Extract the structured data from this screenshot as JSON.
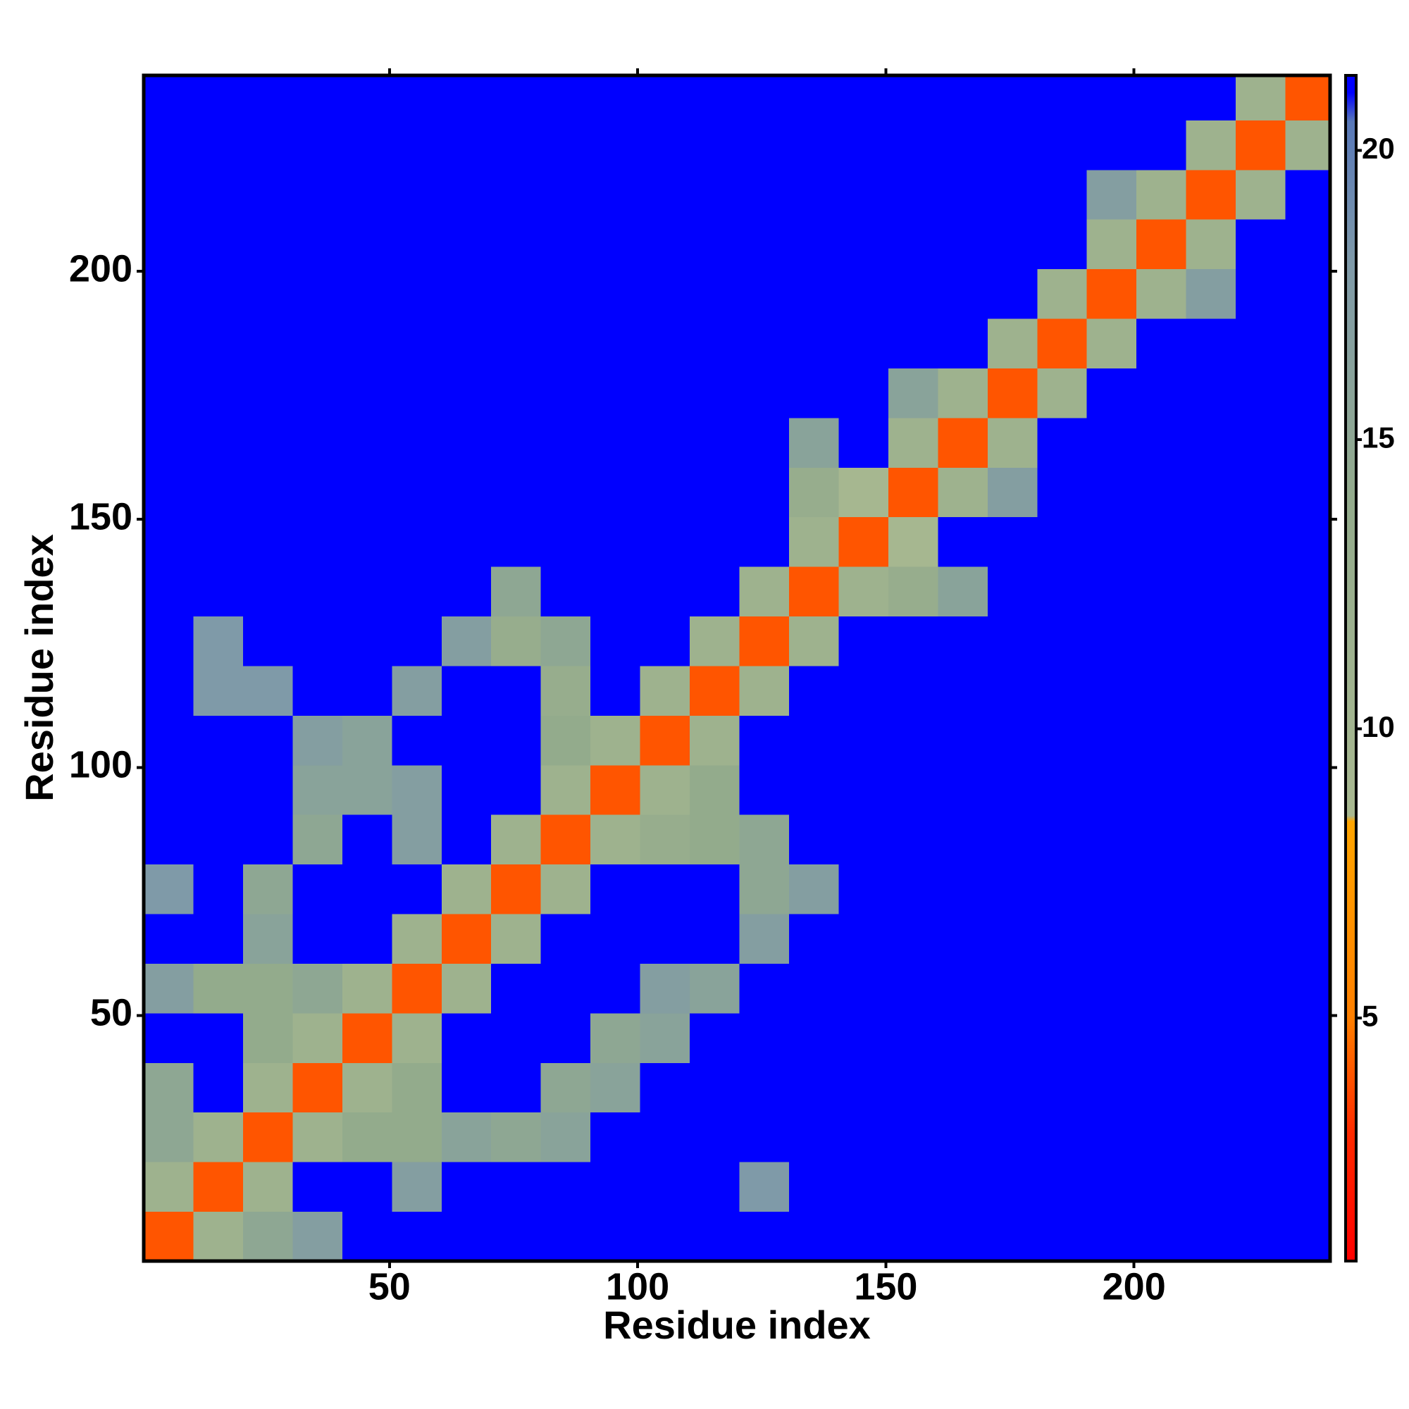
{
  "chart_data": {
    "type": "heatmap",
    "xlabel": "Residue index",
    "ylabel": "Residue index",
    "xlim": [
      0.5,
      239.5
    ],
    "ylim": [
      0.5,
      239.5
    ],
    "xticks": [
      50,
      100,
      150,
      200
    ],
    "yticks": [
      50,
      100,
      150,
      200
    ],
    "xbins": [
      0.5,
      10.5,
      20.5,
      30.5,
      40.5,
      50.5,
      60.5,
      70.5,
      80.5,
      90.5,
      100.5,
      110.5,
      120.5,
      130.5,
      140.5,
      150.5,
      160.5,
      170.5,
      180.5,
      190.5,
      200.5,
      210.5,
      220.5,
      230.5,
      239.5
    ],
    "ybins": [
      0.5,
      10.5,
      20.5,
      30.5,
      40.5,
      50.5,
      60.5,
      70.5,
      80.5,
      90.5,
      100.5,
      110.5,
      120.5,
      130.5,
      140.5,
      150.5,
      160.5,
      170.5,
      180.5,
      190.5,
      200.5,
      210.5,
      220.5,
      230.5,
      239.5
    ],
    "z": [
      [
        4,
        11,
        15,
        17,
        21,
        21,
        21,
        21,
        21,
        21,
        21,
        21,
        21,
        21,
        21,
        21,
        21,
        21,
        21,
        21,
        21,
        21,
        21,
        21
      ],
      [
        11,
        4,
        11,
        21,
        21,
        17,
        21,
        21,
        21,
        21,
        21,
        21,
        18,
        21,
        21,
        21,
        21,
        21,
        21,
        21,
        21,
        21,
        21,
        21
      ],
      [
        15,
        11,
        4,
        11,
        14,
        14,
        16,
        15,
        16,
        21,
        21,
        21,
        21,
        21,
        21,
        21,
        21,
        21,
        21,
        21,
        21,
        21,
        21,
        21
      ],
      [
        15,
        21,
        11,
        4,
        11,
        14,
        21,
        21,
        15,
        16,
        21,
        21,
        21,
        21,
        21,
        21,
        21,
        21,
        21,
        21,
        21,
        21,
        21,
        21
      ],
      [
        21,
        21,
        14,
        11,
        4,
        11,
        21,
        21,
        21,
        15,
        16,
        21,
        21,
        21,
        21,
        21,
        21,
        21,
        21,
        21,
        21,
        21,
        21,
        21
      ],
      [
        17,
        14,
        14,
        15,
        11,
        4,
        11,
        21,
        21,
        21,
        17,
        16,
        21,
        21,
        21,
        21,
        21,
        21,
        21,
        21,
        21,
        21,
        21,
        21
      ],
      [
        21,
        21,
        16,
        21,
        21,
        11,
        4,
        11,
        21,
        21,
        21,
        21,
        17,
        21,
        21,
        21,
        21,
        21,
        21,
        21,
        21,
        21,
        21,
        21
      ],
      [
        18,
        21,
        15,
        21,
        21,
        21,
        11,
        4,
        11,
        21,
        21,
        21,
        15,
        17,
        21,
        21,
        21,
        21,
        21,
        21,
        21,
        21,
        21,
        21
      ],
      [
        21,
        21,
        21,
        15,
        21,
        17,
        21,
        11,
        4,
        11,
        13,
        14,
        15,
        21,
        21,
        21,
        21,
        21,
        21,
        21,
        21,
        21,
        21,
        21
      ],
      [
        21,
        21,
        21,
        16,
        16,
        17,
        21,
        21,
        11,
        4,
        11,
        14,
        21,
        21,
        21,
        21,
        21,
        21,
        21,
        21,
        21,
        21,
        21,
        21
      ],
      [
        21,
        21,
        21,
        17,
        16,
        21,
        21,
        21,
        14,
        11,
        4,
        11,
        21,
        21,
        21,
        21,
        21,
        21,
        21,
        21,
        21,
        21,
        21,
        21
      ],
      [
        21,
        18,
        18,
        21,
        21,
        17,
        21,
        21,
        13,
        21,
        11,
        4,
        11,
        21,
        21,
        21,
        21,
        21,
        21,
        21,
        21,
        21,
        21,
        21
      ],
      [
        21,
        18,
        21,
        21,
        21,
        21,
        17,
        13,
        15,
        21,
        21,
        11,
        4,
        11,
        21,
        21,
        21,
        21,
        21,
        21,
        21,
        21,
        21,
        21
      ],
      [
        21,
        21,
        21,
        21,
        21,
        21,
        21,
        15,
        21,
        21,
        21,
        21,
        11,
        4,
        11,
        13,
        16,
        21,
        21,
        21,
        21,
        21,
        21,
        21
      ],
      [
        21,
        21,
        21,
        21,
        21,
        21,
        21,
        21,
        21,
        21,
        21,
        21,
        21,
        11,
        4,
        9,
        21,
        21,
        21,
        21,
        21,
        21,
        21,
        21
      ],
      [
        21,
        21,
        21,
        21,
        21,
        21,
        21,
        21,
        21,
        21,
        21,
        21,
        21,
        13,
        9,
        4,
        11,
        17,
        21,
        21,
        21,
        21,
        21,
        21
      ],
      [
        21,
        21,
        21,
        21,
        21,
        21,
        21,
        21,
        21,
        21,
        21,
        21,
        21,
        16,
        21,
        11,
        4,
        11,
        21,
        21,
        21,
        21,
        21,
        21
      ],
      [
        21,
        21,
        21,
        21,
        21,
        21,
        21,
        21,
        21,
        21,
        21,
        21,
        21,
        21,
        21,
        16,
        11,
        4,
        11,
        21,
        21,
        21,
        21,
        21
      ],
      [
        21,
        21,
        21,
        21,
        21,
        21,
        21,
        21,
        21,
        21,
        21,
        21,
        21,
        21,
        21,
        21,
        21,
        11,
        4,
        11,
        21,
        21,
        21,
        21
      ],
      [
        21,
        21,
        21,
        21,
        21,
        21,
        21,
        21,
        21,
        21,
        21,
        21,
        21,
        21,
        21,
        21,
        21,
        21,
        11,
        4,
        11,
        17,
        21,
        21
      ],
      [
        21,
        21,
        21,
        21,
        21,
        21,
        21,
        21,
        21,
        21,
        21,
        21,
        21,
        21,
        21,
        21,
        21,
        21,
        21,
        11,
        4,
        11,
        21,
        21
      ],
      [
        21,
        21,
        21,
        21,
        21,
        21,
        21,
        21,
        21,
        21,
        21,
        21,
        21,
        21,
        21,
        21,
        21,
        21,
        21,
        17,
        11,
        4,
        11,
        21
      ],
      [
        21,
        21,
        21,
        21,
        21,
        21,
        21,
        21,
        21,
        21,
        21,
        21,
        21,
        21,
        21,
        21,
        21,
        21,
        21,
        21,
        21,
        11,
        4,
        11
      ],
      [
        21,
        21,
        21,
        21,
        21,
        21,
        21,
        21,
        21,
        21,
        21,
        21,
        21,
        21,
        21,
        21,
        21,
        21,
        21,
        21,
        21,
        21,
        11,
        4
      ]
    ],
    "zlim": [
      0.8,
      21.3
    ],
    "zticks": [
      5,
      10,
      15,
      20
    ],
    "colorscale": [
      {
        "value": 0.8,
        "color": "#ff0000"
      },
      {
        "value": 3,
        "color": "#ff2a00"
      },
      {
        "value": 5,
        "color": "#ff7f00"
      },
      {
        "value": 8.4,
        "color": "#ffa500"
      },
      {
        "value": 8.5,
        "color": "#a8b890"
      },
      {
        "value": 14,
        "color": "#93ab8c"
      },
      {
        "value": 18,
        "color": "#7f9aa8"
      },
      {
        "value": 20.5,
        "color": "#5878b8"
      },
      {
        "value": 21,
        "color": "#0000ff"
      },
      {
        "value": 21.3,
        "color": "#0000ff"
      }
    ]
  }
}
